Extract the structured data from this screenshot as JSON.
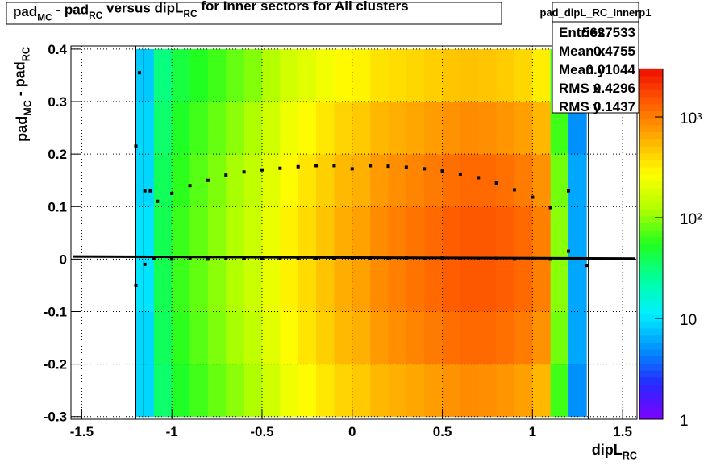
{
  "chart_data": {
    "type": "heatmap",
    "title": [
      {
        "text": "pad"
      },
      {
        "text": "MC",
        "sub": true
      },
      {
        "text": " - pad"
      },
      {
        "text": "RC",
        "sub": true
      },
      {
        "text": " versus dipL"
      },
      {
        "text": "RC",
        "sub": true
      },
      {
        "text": " for Inner sectors for All clusters"
      }
    ],
    "x_label": [
      {
        "text": "dipL"
      },
      {
        "text": "RC",
        "sub": true
      }
    ],
    "y_label": [
      {
        "text": "pad"
      },
      {
        "text": "MC",
        "sub": true
      },
      {
        "text": " - pad"
      },
      {
        "text": "RC",
        "sub": true
      }
    ],
    "xlim": [
      -1.56,
      1.58
    ],
    "ylim": [
      -0.305,
      0.406
    ],
    "xticks": [
      -1.5,
      -1,
      -0.5,
      0,
      0.5,
      1,
      1.5
    ],
    "yticks": [
      -0.3,
      -0.2,
      -0.1,
      0,
      0.1,
      0.2,
      0.3,
      0.4
    ],
    "grid": true,
    "xbins": [
      -1.2,
      -1.1,
      -1.0,
      -0.9,
      -0.8,
      -0.7,
      -0.6,
      -0.5,
      -0.4,
      -0.3,
      -0.2,
      -0.1,
      0,
      0.1,
      0.2,
      0.3,
      0.4,
      0.5,
      0.6,
      0.7,
      0.8,
      0.9,
      1.0,
      1.1,
      1.2,
      1.3
    ],
    "ybins": [
      -0.3,
      -0.2,
      -0.1,
      0,
      0.1,
      0.2,
      0.3,
      0.4
    ],
    "z": [
      [
        9,
        34,
        53,
        66,
        81,
        100,
        122,
        168,
        230,
        282,
        345,
        422,
        460,
        562,
        613,
        668,
        740,
        818,
        863,
        851,
        794,
        708,
        562,
        65,
        5
      ],
      [
        9,
        38,
        59,
        74,
        92,
        116,
        144,
        202,
        282,
        352,
        438,
        546,
        606,
        755,
        838,
        931,
        1040,
        1160,
        1236,
        1230,
        1148,
        1023,
        813,
        86,
        6
      ],
      [
        10,
        40,
        63,
        79,
        99,
        125,
        157,
        221,
        312,
        393,
        494,
        621,
        696,
        875,
        981,
        1099,
        1233,
        1382,
        1479,
        1479,
        1380,
        1230,
        977,
        98,
        6
      ],
      [
        10,
        40,
        63,
        79,
        99,
        125,
        157,
        221,
        312,
        393,
        494,
        621,
        696,
        875,
        981,
        1099,
        1233,
        1382,
        1479,
        1479,
        1380,
        1230,
        977,
        98,
        6
      ],
      [
        9,
        38,
        59,
        74,
        92,
        116,
        144,
        202,
        282,
        352,
        438,
        546,
        606,
        755,
        838,
        931,
        1040,
        1160,
        1236,
        1230,
        1148,
        1023,
        813,
        86,
        6
      ],
      [
        9,
        34,
        53,
        66,
        81,
        100,
        122,
        168,
        230,
        282,
        345,
        422,
        460,
        562,
        613,
        668,
        740,
        818,
        863,
        851,
        794,
        708,
        562,
        65,
        5
      ],
      [
        8,
        30,
        45,
        55,
        65,
        80,
        95,
        127,
        170,
        202,
        241,
        286,
        304,
        361,
        383,
        406,
        444,
        484,
        504,
        490,
        457,
        407,
        324,
        43,
        5
      ]
    ],
    "z_log": true,
    "zlim": [
      1,
      3000
    ],
    "zticks": [
      1,
      10,
      {
        "value": 100,
        "label": "10²"
      },
      {
        "value": 1000,
        "label": "10³"
      }
    ],
    "palette": [
      "#8000ff",
      "#2828ff",
      "#0090ff",
      "#00f0ff",
      "#00ffa0",
      "#20ff20",
      "#b0ff00",
      "#ffff00",
      "#ffb000",
      "#ff6000",
      "#f01000"
    ],
    "series": [
      {
        "x": [
          -1.2,
          -1.18,
          -1.15,
          -1.12,
          -1.08,
          -1.0,
          -0.9,
          -0.8,
          -0.7,
          -0.6,
          -0.5,
          -0.4,
          -0.3,
          -0.2,
          -0.1,
          0,
          0.1,
          0.2,
          0.3,
          0.4,
          0.5,
          0.6,
          0.7,
          0.8,
          0.9,
          1.0,
          1.1,
          1.2
        ],
        "values": [
          0.215,
          0.355,
          0.13,
          0.13,
          0.11,
          0.125,
          0.14,
          0.15,
          0.16,
          0.166,
          0.17,
          0.173,
          0.176,
          0.178,
          0.178,
          0.172,
          0.178,
          0.177,
          0.175,
          0.172,
          0.168,
          0.162,
          0.155,
          0.145,
          0.132,
          0.118,
          0.098,
          0.13
        ],
        "color": "#000000"
      },
      {
        "x": [
          -1.2,
          -1.15,
          -1.1,
          -1.0,
          -0.9,
          -0.8,
          -0.7,
          -0.6,
          -0.5,
          -0.4,
          -0.3,
          -0.2,
          -0.1,
          0,
          0.1,
          0.2,
          0.3,
          0.4,
          0.5,
          0.6,
          0.7,
          0.8,
          0.9,
          1.0,
          1.1,
          1.2,
          1.3
        ],
        "values": [
          -0.05,
          -0.01,
          0.002,
          0.0,
          0.001,
          0.0,
          0.001,
          0.002,
          0.001,
          0.002,
          0.001,
          0.002,
          0.001,
          0.002,
          0.002,
          0.001,
          0.002,
          0.001,
          0.002,
          0.001,
          0.001,
          0.001,
          0.0,
          0.001,
          0.0,
          0.015,
          -0.012
        ],
        "color": "#000000"
      }
    ],
    "fit_line": {
      "x": [
        -1.55,
        1.57
      ],
      "values": [
        0.005,
        0.001
      ],
      "color": "#000000"
    },
    "vlines": [
      -1.2,
      -1.156,
      1.31
    ],
    "stats": {
      "name": "pad_dipL_RC_Innerp1",
      "rows": [
        {
          "label": "Entries",
          "value": 5627533
        },
        {
          "label": "Mean x",
          "value": 0.4755
        },
        {
          "label": "Mean y",
          "value": 0.01044
        },
        {
          "label": "RMS x",
          "value": 0.4296
        },
        {
          "label": "RMS y",
          "value": 0.1437
        }
      ]
    }
  }
}
